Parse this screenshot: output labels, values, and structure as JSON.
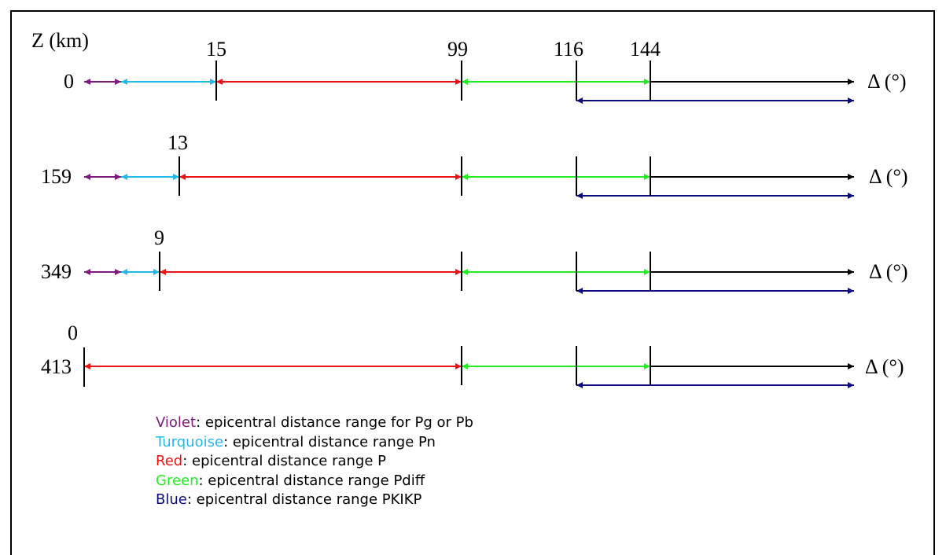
{
  "axis_label": "Z (km)",
  "delta_label": "Δ (°)",
  "top_ticks": [
    "15",
    "99",
    "116",
    "144"
  ],
  "rows": [
    {
      "depth": "0",
      "ticks": [
        "15",
        "99",
        "116",
        "144"
      ]
    },
    {
      "depth": "159",
      "ticks": [
        "13"
      ]
    },
    {
      "depth": "349",
      "ticks": [
        "9"
      ]
    },
    {
      "depth": "413",
      "ticks": [
        "0"
      ]
    }
  ],
  "colors": {
    "violet": "#7b1a7b",
    "turquoise": "#22b8e8",
    "red": "#ee1111",
    "green": "#22ee22",
    "blue": "#0b0b7d",
    "black": "#000000"
  },
  "legend": [
    {
      "name": "Violet",
      "text": ": epicentral distance range for Pg or Pb",
      "color": "#7b1a7b"
    },
    {
      "name": "Turquoise",
      "text": ": epicentral distance range Pn",
      "color": "#22b8e8"
    },
    {
      "name": "Red",
      "text": ": epicentral distance range P",
      "color": "#ee1111"
    },
    {
      "name": "Green",
      "text": ": epicentral distance range Pdiff",
      "color": "#22ee22"
    },
    {
      "name": "Blue",
      "text": ": epicentral distance range PKIKP",
      "color": "#0b0b7d"
    }
  ]
}
